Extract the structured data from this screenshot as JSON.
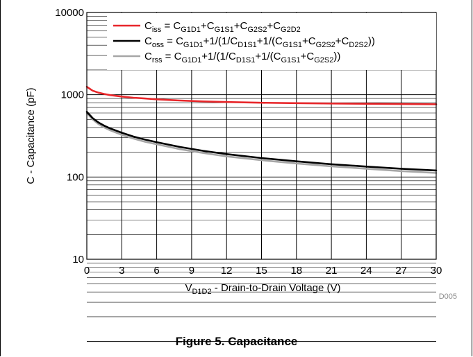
{
  "caption": "Figure 5. Capacitance",
  "chart_data": {
    "type": "line",
    "title": "",
    "code": "D005",
    "xlabel": {
      "main": "V",
      "sub": "D1D2",
      "rest": " - Drain-to-Drain Voltage (V)"
    },
    "ylabel": "C - Capacitance (pF)",
    "xlim": [
      0,
      30
    ],
    "ylim": [
      10,
      10000
    ],
    "y_scale": "log",
    "grid": true,
    "legend_position": "top-right",
    "x_ticks": [
      0,
      3,
      6,
      9,
      12,
      15,
      18,
      21,
      24,
      27,
      30
    ],
    "x_tick_labels": [
      "0",
      "3",
      "6",
      "9",
      "12",
      "15",
      "18",
      "21",
      "24",
      "27",
      "30"
    ],
    "y_ticks": [
      10,
      100,
      1000,
      10000
    ],
    "y_tick_labels": [
      "10",
      "100",
      "1000",
      "10000"
    ],
    "series": [
      {
        "name": "Ciss",
        "color": "#e8262a",
        "legend": [
          {
            "t": "C"
          },
          {
            "t": "iss",
            "s": 1
          },
          {
            "t": " = C"
          },
          {
            "t": "G1D1",
            "s": 1
          },
          {
            "t": "+C"
          },
          {
            "t": "G1S1",
            "s": 1
          },
          {
            "t": "+C"
          },
          {
            "t": "G2S2",
            "s": 1
          },
          {
            "t": "+C"
          },
          {
            "t": "G2D2",
            "s": 1
          }
        ],
        "x": [
          0,
          0.5,
          1,
          1.5,
          2,
          3,
          4,
          5,
          6,
          8,
          10,
          12,
          15,
          18,
          21,
          24,
          27,
          30
        ],
        "y": [
          1250,
          1120,
          1060,
          1020,
          990,
          950,
          920,
          900,
          880,
          850,
          830,
          815,
          800,
          790,
          782,
          776,
          771,
          766
        ]
      },
      {
        "name": "Coss",
        "color": "#000000",
        "legend": [
          {
            "t": "C"
          },
          {
            "t": "oss",
            "s": 1
          },
          {
            "t": " = C"
          },
          {
            "t": "G1D1",
            "s": 1
          },
          {
            "t": "+1/(1/C"
          },
          {
            "t": "D1S1",
            "s": 1
          },
          {
            "t": "+1/(C"
          },
          {
            "t": "G1S1",
            "s": 1
          },
          {
            "t": "+C"
          },
          {
            "t": "G2S2",
            "s": 1
          },
          {
            "t": "+C"
          },
          {
            "t": "D2S2",
            "s": 1
          },
          {
            "t": "))"
          }
        ],
        "x": [
          0,
          0.5,
          1,
          1.5,
          2,
          3,
          4,
          5,
          6,
          8,
          10,
          12,
          15,
          18,
          21,
          24,
          27,
          30
        ],
        "y": [
          620,
          520,
          460,
          420,
          390,
          345,
          310,
          285,
          265,
          232,
          208,
          190,
          170,
          155,
          143,
          134,
          126,
          120
        ]
      },
      {
        "name": "Crss",
        "color": "#a6a6a6",
        "legend": [
          {
            "t": "C"
          },
          {
            "t": "rss",
            "s": 1
          },
          {
            "t": " = C"
          },
          {
            "t": "G1D1",
            "s": 1
          },
          {
            "t": "+1/(1/C"
          },
          {
            "t": "D1S1",
            "s": 1
          },
          {
            "t": "+1/(C"
          },
          {
            "t": "G1S1",
            "s": 1
          },
          {
            "t": "+C"
          },
          {
            "t": "G2S2",
            "s": 1
          },
          {
            "t": "))"
          }
        ],
        "x": [
          0,
          0.5,
          1,
          1.5,
          2,
          3,
          4,
          5,
          6,
          8,
          10,
          12,
          15,
          18,
          21,
          24,
          27,
          30
        ],
        "y": [
          600,
          500,
          440,
          400,
          370,
          325,
          293,
          268,
          250,
          218,
          196,
          178,
          160,
          146,
          135,
          126,
          118,
          112
        ]
      }
    ]
  }
}
